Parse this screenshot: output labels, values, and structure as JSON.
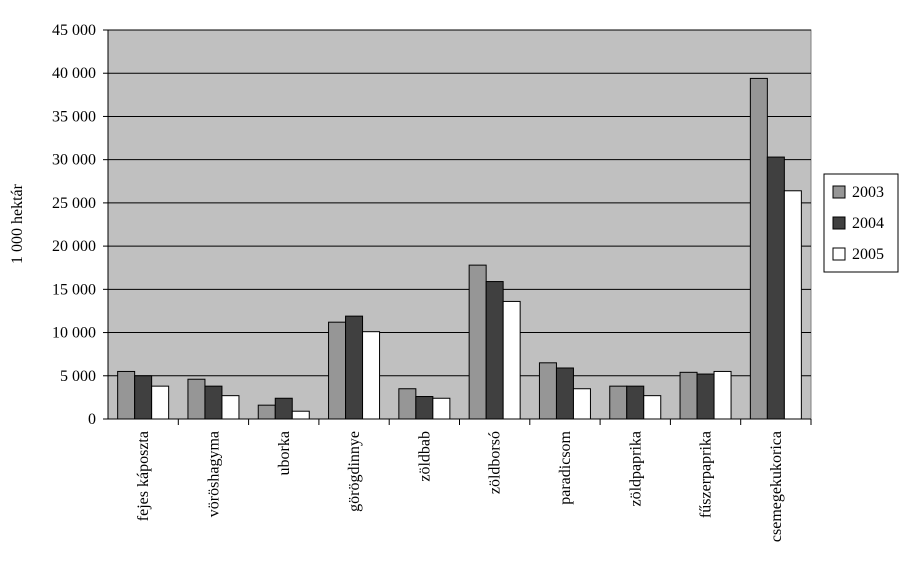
{
  "chart_data": {
    "type": "bar",
    "ylabel": "1 000 hektár",
    "ylim": [
      0,
      45000
    ],
    "ytick_step": 5000,
    "yticks": [
      "0",
      "5 000",
      "10 000",
      "15 000",
      "20 000",
      "25 000",
      "30 000",
      "35 000",
      "40 000",
      "45 000"
    ],
    "grid": true,
    "legend_position": "right",
    "plot_background": "#c0c0c0",
    "categories": [
      "fejes káposzta",
      "vöröshagyma",
      "uborka",
      "görögdinnye",
      "zöldbab",
      "zöldborsó",
      "paradicsom",
      "zöldpaprika",
      "fűszerpaprika",
      "csemegekukorica"
    ],
    "series": [
      {
        "name": "2003",
        "color": "#969696",
        "values": [
          5500,
          4600,
          1600,
          11200,
          3500,
          17800,
          6500,
          3800,
          5400,
          39400
        ]
      },
      {
        "name": "2004",
        "color": "#404040",
        "values": [
          5000,
          3800,
          2400,
          11900,
          2600,
          15900,
          5900,
          3800,
          5200,
          30300
        ]
      },
      {
        "name": "2005",
        "color": "#ffffff",
        "values": [
          3800,
          2700,
          900,
          10100,
          2400,
          13600,
          3500,
          2700,
          5500,
          26400
        ]
      }
    ]
  }
}
